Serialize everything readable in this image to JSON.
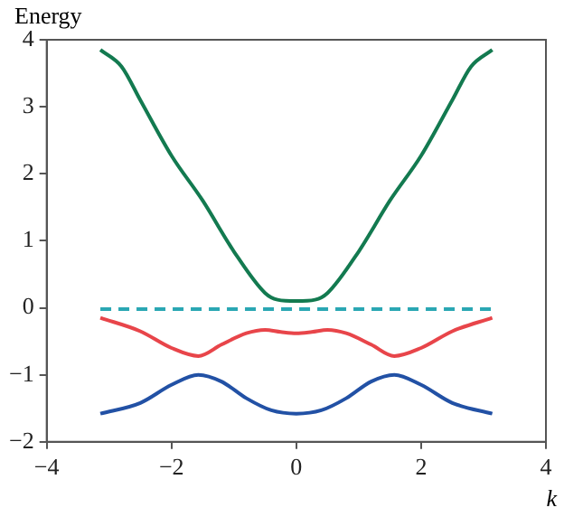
{
  "chart_data": {
    "type": "line",
    "xlabel": "k",
    "ylabel": "Energy",
    "xlim": [
      -4,
      4
    ],
    "ylim": [
      -2,
      4
    ],
    "xticks": [
      -4,
      -2,
      0,
      2,
      4
    ],
    "yticks": [
      -2,
      -1,
      0,
      1,
      2,
      3,
      4
    ],
    "grid": false,
    "legend": false,
    "marker": "none",
    "series": [
      {
        "color": "#137a50",
        "x": [
          -3.14,
          -2.8,
          -2.5,
          -2,
          -1.5,
          -1,
          -0.5,
          -0.3,
          0,
          0.3,
          0.5,
          1,
          1.5,
          2,
          2.5,
          2.8,
          3.14
        ],
        "values": [
          3.85,
          3.6,
          3.1,
          2.27,
          1.6,
          0.84,
          0.22,
          0.12,
          0.1,
          0.12,
          0.22,
          0.84,
          1.6,
          2.27,
          3.1,
          3.6,
          3.85
        ]
      },
      {
        "color": "#e8454a",
        "x": [
          -3.14,
          -2.5,
          -2,
          -1.57,
          -1.2,
          -0.8,
          -0.5,
          -0.25,
          0,
          0.25,
          0.5,
          0.8,
          1.2,
          1.57,
          2,
          2.5,
          3.14
        ],
        "values": [
          -0.15,
          -0.35,
          -0.6,
          -0.72,
          -0.55,
          -0.38,
          -0.33,
          -0.36,
          -0.38,
          -0.36,
          -0.33,
          -0.38,
          -0.55,
          -0.72,
          -0.6,
          -0.35,
          -0.15
        ]
      },
      {
        "color": "#2251a5",
        "x": [
          -3.14,
          -2.5,
          -2,
          -1.57,
          -1.2,
          -0.8,
          -0.4,
          0,
          0.4,
          0.8,
          1.2,
          1.57,
          2,
          2.5,
          3.14
        ],
        "values": [
          -1.58,
          -1.42,
          -1.15,
          -1,
          -1.1,
          -1.35,
          -1.53,
          -1.58,
          -1.53,
          -1.35,
          -1.1,
          -1,
          -1.15,
          -1.42,
          -1.58
        ]
      },
      {
        "color": "#2aa7b3",
        "line_style": "dashed",
        "x": [
          -3.14,
          3.14
        ],
        "values": [
          -0.02,
          -0.02
        ]
      }
    ]
  }
}
